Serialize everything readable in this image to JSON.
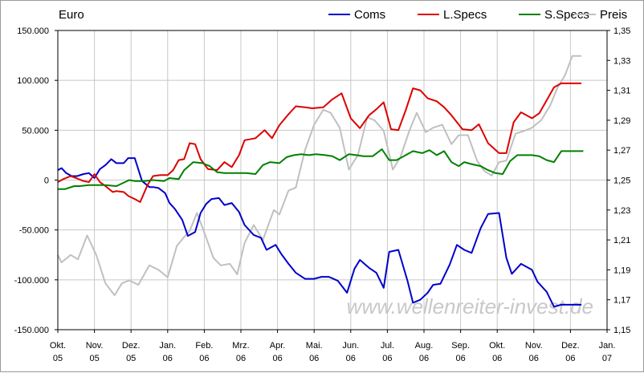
{
  "chart_data": {
    "type": "line",
    "unit_label": "Euro",
    "watermark": "www.wellenreiter-invest.de",
    "x_ticks": [
      {
        "label": [
          "Okt.",
          "05"
        ],
        "x": 0
      },
      {
        "label": [
          "Nov.",
          "05"
        ],
        "x": 1
      },
      {
        "label": [
          "Dez.",
          "05"
        ],
        "x": 2
      },
      {
        "label": [
          "Jan.",
          "06"
        ],
        "x": 3
      },
      {
        "label": [
          "Feb.",
          "06"
        ],
        "x": 4
      },
      {
        "label": [
          "Mrz.",
          "06"
        ],
        "x": 5
      },
      {
        "label": [
          "Apr.",
          "06"
        ],
        "x": 6
      },
      {
        "label": [
          "Mai.",
          "06"
        ],
        "x": 7
      },
      {
        "label": [
          "Jun.",
          "06"
        ],
        "x": 8
      },
      {
        "label": [
          "Jul.",
          "06"
        ],
        "x": 9
      },
      {
        "label": [
          "Aug.",
          "06"
        ],
        "x": 10
      },
      {
        "label": [
          "Sep.",
          "06"
        ],
        "x": 11
      },
      {
        "label": [
          "Okt.",
          "06"
        ],
        "x": 12
      },
      {
        "label": [
          "Nov.",
          "06"
        ],
        "x": 13
      },
      {
        "label": [
          "Dez.",
          "06"
        ],
        "x": 14
      },
      {
        "label": [
          "Jan.",
          "07"
        ],
        "x": 15
      }
    ],
    "y_left": {
      "min": -150000,
      "max": 150000,
      "ticks": [
        {
          "v": 150000,
          "label": "150.000"
        },
        {
          "v": 100000,
          "label": "100.000"
        },
        {
          "v": 50000,
          "label": "50.000"
        },
        {
          "v": 0,
          "label": "0"
        },
        {
          "v": -50000,
          "label": "-50.000"
        },
        {
          "v": -100000,
          "label": "-100.000"
        },
        {
          "v": -150000,
          "label": "-150.000"
        }
      ]
    },
    "y_right": {
      "min": 1.15,
      "max": 1.35,
      "ticks": [
        {
          "v": 1.35,
          "label": "1,35"
        },
        {
          "v": 1.33,
          "label": "1,33"
        },
        {
          "v": 1.31,
          "label": "1,31"
        },
        {
          "v": 1.29,
          "label": "1,29"
        },
        {
          "v": 1.27,
          "label": "1,27"
        },
        {
          "v": 1.25,
          "label": "1,25"
        },
        {
          "v": 1.23,
          "label": "1,23"
        },
        {
          "v": 1.21,
          "label": "1,21"
        },
        {
          "v": 1.19,
          "label": "1,19"
        },
        {
          "v": 1.17,
          "label": "1,17"
        },
        {
          "v": 1.15,
          "label": "1,15"
        }
      ]
    },
    "grid": true,
    "legend_position": "top-right",
    "series": [
      {
        "name": "Coms",
        "color": "#0000cc",
        "axis": "left",
        "x": [
          0,
          0.1,
          0.23,
          0.38,
          0.53,
          0.7,
          0.85,
          1.0,
          1.15,
          1.3,
          1.46,
          1.6,
          1.8,
          1.92,
          2.1,
          2.3,
          2.5,
          2.6,
          2.75,
          2.93,
          3.05,
          3.2,
          3.4,
          3.55,
          3.75,
          3.9,
          4.05,
          4.2,
          4.4,
          4.55,
          4.75,
          4.95,
          5.1,
          5.35,
          5.55,
          5.7,
          5.95,
          6.1,
          6.3,
          6.5,
          6.75,
          7.0,
          7.2,
          7.4,
          7.65,
          7.9,
          8.1,
          8.25,
          8.5,
          8.7,
          8.9,
          9.05,
          9.3,
          9.55,
          9.7,
          9.9,
          10.1,
          10.25,
          10.45,
          10.7,
          10.9,
          11.1,
          11.3,
          11.55,
          11.75,
          12.05,
          12.25,
          12.4,
          12.65,
          12.95,
          13.1,
          13.35,
          13.55,
          13.75,
          13.95,
          14.15,
          14.3
        ],
        "values": [
          10000,
          12000,
          7000,
          4000,
          4000,
          6000,
          7000,
          2000,
          11000,
          15000,
          21000,
          17000,
          17000,
          22000,
          22000,
          -1000,
          -7000,
          -7000,
          -8000,
          -13000,
          -23000,
          -29000,
          -40000,
          -56000,
          -52000,
          -33000,
          -24000,
          -19000,
          -18000,
          -25000,
          -23000,
          -32000,
          -45000,
          -55000,
          -58000,
          -70000,
          -65000,
          -74000,
          -84000,
          -93000,
          -99000,
          -99000,
          -97000,
          -97000,
          -101000,
          -113000,
          -89000,
          -80000,
          -88000,
          -93000,
          -108000,
          -72000,
          -70000,
          -101000,
          -123000,
          -120000,
          -113000,
          -105000,
          -104000,
          -85000,
          -65000,
          -70000,
          -73000,
          -48000,
          -34000,
          -33000,
          -78000,
          -94000,
          -84000,
          -90000,
          -102000,
          -112000,
          -127000,
          -125000,
          -125000,
          -125000,
          -125000
        ]
      },
      {
        "name": "L.Specs",
        "color": "#dd0000",
        "axis": "left",
        "x": [
          0,
          0.15,
          0.35,
          0.5,
          0.7,
          0.85,
          1.0,
          1.15,
          1.3,
          1.5,
          1.6,
          1.8,
          1.93,
          2.1,
          2.25,
          2.45,
          2.6,
          2.8,
          3.0,
          3.15,
          3.3,
          3.45,
          3.6,
          3.75,
          3.9,
          4.1,
          4.35,
          4.55,
          4.75,
          4.95,
          5.1,
          5.4,
          5.65,
          5.85,
          6.05,
          6.3,
          6.5,
          6.75,
          6.95,
          7.25,
          7.5,
          7.75,
          8.0,
          8.25,
          8.5,
          8.7,
          8.9,
          9.1,
          9.3,
          9.5,
          9.7,
          9.9,
          10.1,
          10.35,
          10.55,
          10.75,
          11.05,
          11.3,
          11.5,
          11.75,
          12.05,
          12.25,
          12.45,
          12.65,
          12.95,
          13.15,
          13.35,
          13.55,
          13.75,
          13.95,
          14.1,
          14.3
        ],
        "values": [
          -2000,
          1000,
          4000,
          2000,
          -1000,
          -2000,
          6000,
          -2000,
          -6000,
          -12000,
          -11000,
          -12000,
          -16000,
          -19000,
          -22000,
          -5000,
          4000,
          5000,
          5000,
          10000,
          20000,
          21000,
          37000,
          36000,
          21000,
          11000,
          10000,
          18000,
          13000,
          25000,
          40000,
          42000,
          50000,
          42000,
          55000,
          66000,
          74000,
          73000,
          72000,
          73000,
          81000,
          87000,
          62000,
          52000,
          65000,
          71000,
          78000,
          51000,
          50000,
          70000,
          92000,
          90000,
          82000,
          79000,
          73000,
          65000,
          51000,
          50000,
          56000,
          37000,
          27000,
          27000,
          58000,
          68000,
          62000,
          67000,
          80000,
          93000,
          97000,
          97000,
          97000,
          97000
        ]
      },
      {
        "name": "S.Specs",
        "color": "#008000",
        "axis": "left",
        "x": [
          0,
          0.2,
          0.45,
          0.6,
          0.85,
          1.05,
          1.3,
          1.6,
          1.95,
          2.1,
          2.35,
          2.6,
          2.9,
          3.05,
          3.3,
          3.45,
          3.7,
          3.95,
          4.15,
          4.35,
          4.55,
          4.75,
          4.95,
          5.15,
          5.4,
          5.6,
          5.8,
          6.05,
          6.25,
          6.45,
          6.65,
          6.85,
          7.05,
          7.3,
          7.5,
          7.7,
          7.95,
          8.15,
          8.35,
          8.6,
          8.85,
          9.05,
          9.25,
          9.45,
          9.7,
          9.95,
          10.15,
          10.35,
          10.55,
          10.75,
          10.95,
          11.1,
          11.3,
          11.55,
          11.75,
          11.95,
          12.15,
          12.35,
          12.55,
          12.75,
          12.95,
          13.15,
          13.35,
          13.55,
          13.75,
          13.95,
          14.15,
          14.35
        ],
        "values": [
          -9000,
          -9000,
          -6000,
          -6000,
          -5000,
          -5000,
          -5000,
          -6000,
          0,
          -1000,
          -1000,
          0,
          -1000,
          2000,
          1000,
          10000,
          18000,
          17000,
          14000,
          8000,
          7000,
          7000,
          7000,
          7000,
          6000,
          15000,
          18000,
          17000,
          23000,
          25000,
          26000,
          25000,
          26000,
          25000,
          24000,
          20000,
          26000,
          25000,
          24000,
          24000,
          31000,
          20000,
          20000,
          24000,
          29000,
          27000,
          30000,
          25000,
          29000,
          18000,
          14000,
          18000,
          16000,
          14000,
          10000,
          7000,
          6000,
          19000,
          25000,
          25000,
          25000,
          24000,
          20000,
          18000,
          29000,
          29000,
          29000,
          29000
        ]
      },
      {
        "name": "Preis",
        "color": "#c0c0c0",
        "axis": "right",
        "x": [
          0,
          0.1,
          0.35,
          0.55,
          0.8,
          1.05,
          1.3,
          1.55,
          1.75,
          1.95,
          2.2,
          2.5,
          2.75,
          3.0,
          3.25,
          3.45,
          3.6,
          3.8,
          4.0,
          4.25,
          4.45,
          4.7,
          4.9,
          5.1,
          5.35,
          5.6,
          5.9,
          6.05,
          6.3,
          6.5,
          6.75,
          7.0,
          7.25,
          7.45,
          7.7,
          7.95,
          8.2,
          8.45,
          8.65,
          8.9,
          9.15,
          9.35,
          9.6,
          9.8,
          10.05,
          10.25,
          10.5,
          10.75,
          10.95,
          11.2,
          11.45,
          11.65,
          11.85,
          12.05,
          12.25,
          12.5,
          12.75,
          12.95,
          13.2,
          13.45,
          13.65,
          13.85,
          14.05,
          14.25,
          14.3
        ],
        "values": [
          1.2,
          1.195,
          1.2,
          1.197,
          1.213,
          1.2,
          1.181,
          1.173,
          1.181,
          1.183,
          1.18,
          1.193,
          1.19,
          1.185,
          1.206,
          1.212,
          1.216,
          1.228,
          1.215,
          1.198,
          1.193,
          1.194,
          1.187,
          1.208,
          1.22,
          1.21,
          1.23,
          1.227,
          1.243,
          1.245,
          1.27,
          1.287,
          1.297,
          1.295,
          1.285,
          1.257,
          1.267,
          1.292,
          1.29,
          1.283,
          1.257,
          1.265,
          1.283,
          1.295,
          1.282,
          1.285,
          1.287,
          1.274,
          1.28,
          1.28,
          1.263,
          1.256,
          1.253,
          1.262,
          1.263,
          1.281,
          1.283,
          1.285,
          1.29,
          1.3,
          1.312,
          1.32,
          1.333,
          1.333,
          1.333
        ]
      }
    ]
  }
}
